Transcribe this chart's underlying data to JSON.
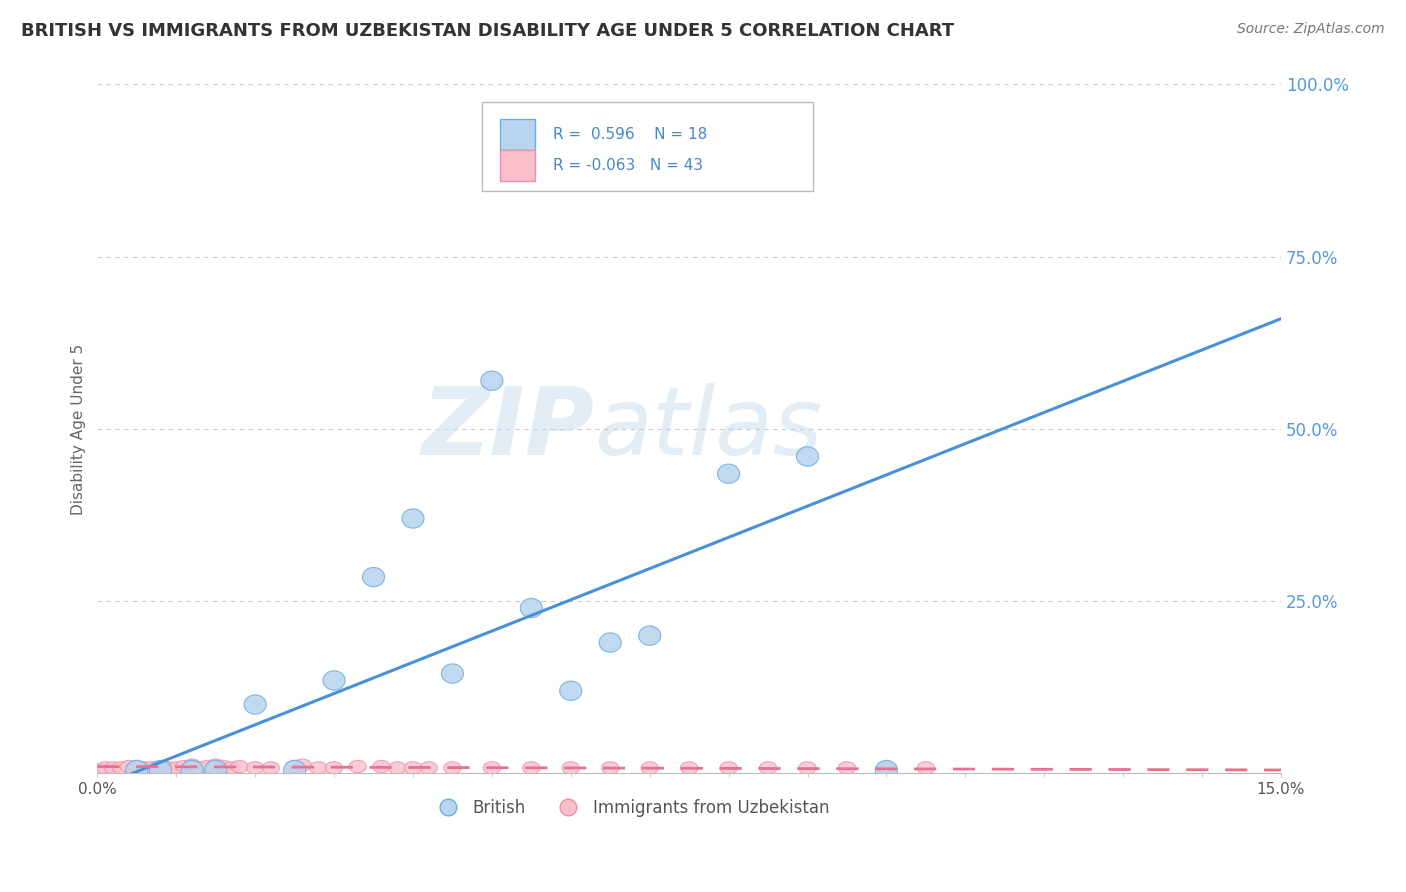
{
  "title": "BRITISH VS IMMIGRANTS FROM UZBEKISTAN DISABILITY AGE UNDER 5 CORRELATION CHART",
  "source": "Source: ZipAtlas.com",
  "ylabel": "Disability Age Under 5",
  "legend_label1": "British",
  "legend_label2": "Immigrants from Uzbekistan",
  "r1": 0.596,
  "n1": 18,
  "r2": -0.063,
  "n2": 43,
  "british_x": [
    0.005,
    0.008,
    0.012,
    0.015,
    0.02,
    0.025,
    0.03,
    0.035,
    0.04,
    0.045,
    0.05,
    0.055,
    0.06,
    0.065,
    0.07,
    0.08,
    0.09,
    0.1
  ],
  "british_y": [
    0.005,
    0.005,
    0.005,
    0.005,
    0.1,
    0.005,
    0.135,
    0.285,
    0.37,
    0.145,
    0.57,
    0.24,
    0.12,
    0.19,
    0.2,
    0.435,
    0.46,
    0.005
  ],
  "uzbek_x": [
    0.0,
    0.001,
    0.002,
    0.003,
    0.004,
    0.005,
    0.006,
    0.007,
    0.008,
    0.009,
    0.01,
    0.011,
    0.012,
    0.013,
    0.014,
    0.015,
    0.016,
    0.017,
    0.018,
    0.02,
    0.022,
    0.025,
    0.026,
    0.028,
    0.03,
    0.033,
    0.036,
    0.038,
    0.04,
    0.042,
    0.045,
    0.05,
    0.055,
    0.06,
    0.065,
    0.07,
    0.075,
    0.08,
    0.085,
    0.09,
    0.095,
    0.1,
    0.105
  ],
  "uzbek_y": [
    0.005,
    0.008,
    0.008,
    0.008,
    0.01,
    0.01,
    0.008,
    0.008,
    0.008,
    0.008,
    0.008,
    0.01,
    0.012,
    0.008,
    0.01,
    0.012,
    0.01,
    0.008,
    0.01,
    0.008,
    0.008,
    0.01,
    0.012,
    0.008,
    0.008,
    0.01,
    0.01,
    0.008,
    0.008,
    0.008,
    0.008,
    0.008,
    0.008,
    0.008,
    0.008,
    0.008,
    0.008,
    0.008,
    0.008,
    0.008,
    0.008,
    0.008,
    0.008
  ],
  "british_line_x0": 0.0,
  "british_line_y0": -0.02,
  "british_line_x1": 0.15,
  "british_line_y1": 0.66,
  "uzbek_line_x0": 0.0,
  "uzbek_line_y0": 0.01,
  "uzbek_line_x1": 0.15,
  "uzbek_line_y1": 0.005,
  "british_fill_color": "#b8d4ee",
  "british_edge_color": "#6aaee0",
  "uzbek_fill_color": "#f9c0cc",
  "uzbek_edge_color": "#f090a8",
  "british_line_color": "#4a90d9",
  "uzbek_line_color": "#e87090",
  "watermark_zip": "ZIP",
  "watermark_atlas": "atlas",
  "xmin": 0.0,
  "xmax": 0.15,
  "ymin": 0.0,
  "ymax": 1.0,
  "yticks": [
    0.0,
    0.25,
    0.5,
    0.75,
    1.0
  ],
  "ytick_labels": [
    "",
    "25.0%",
    "50.0%",
    "75.0%",
    "100.0%"
  ],
  "grid_color": "#c8c8d8",
  "background_color": "#ffffff"
}
